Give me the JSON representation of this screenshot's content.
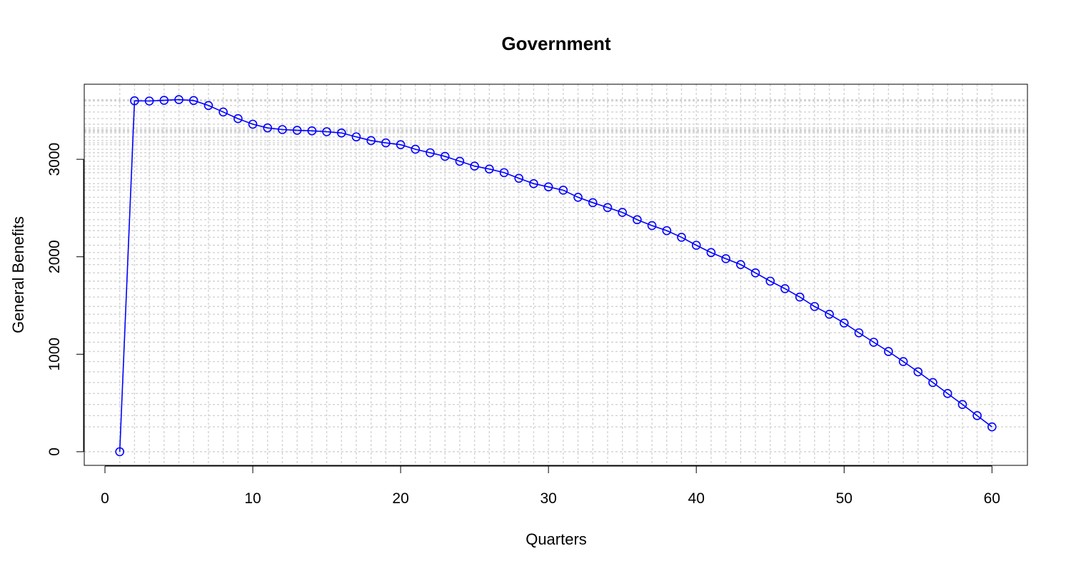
{
  "chart_data": {
    "type": "line",
    "title": "Government",
    "xlabel": "Quarters",
    "ylabel": "General Benefits",
    "xlim": [
      -1.4,
      62.4
    ],
    "ylim": [
      -140,
      3770
    ],
    "xticks": [
      0,
      10,
      20,
      30,
      40,
      50,
      60
    ],
    "yticks": [
      0,
      1000,
      2000,
      3000
    ],
    "grid": true,
    "colors": {
      "series": "#0000ff",
      "grid": "#d3d3d3"
    },
    "series": [
      {
        "x": [
          1,
          2,
          3,
          4,
          5,
          6,
          7,
          8,
          9,
          10,
          11,
          12,
          13,
          14,
          15,
          16,
          17,
          18,
          19,
          20,
          21,
          22,
          23,
          24,
          25,
          26,
          27,
          28,
          29,
          30,
          31,
          32,
          33,
          34,
          35,
          36,
          37,
          38,
          39,
          40,
          41,
          42,
          43,
          44,
          45,
          46,
          47,
          48,
          49,
          50,
          51,
          52,
          53,
          54,
          55,
          56,
          57,
          58,
          59,
          60
        ],
        "values": [
          0,
          3600,
          3598,
          3605,
          3612,
          3603,
          3552,
          3485,
          3417,
          3360,
          3322,
          3305,
          3297,
          3292,
          3283,
          3270,
          3230,
          3192,
          3168,
          3150,
          3103,
          3067,
          3030,
          2980,
          2930,
          2900,
          2863,
          2805,
          2750,
          2717,
          2683,
          2610,
          2555,
          2505,
          2455,
          2380,
          2320,
          2268,
          2200,
          2118,
          2043,
          1980,
          1920,
          1835,
          1750,
          1673,
          1587,
          1490,
          1410,
          1320,
          1220,
          1123,
          1028,
          925,
          820,
          710,
          597,
          485,
          370,
          255
        ]
      }
    ]
  }
}
